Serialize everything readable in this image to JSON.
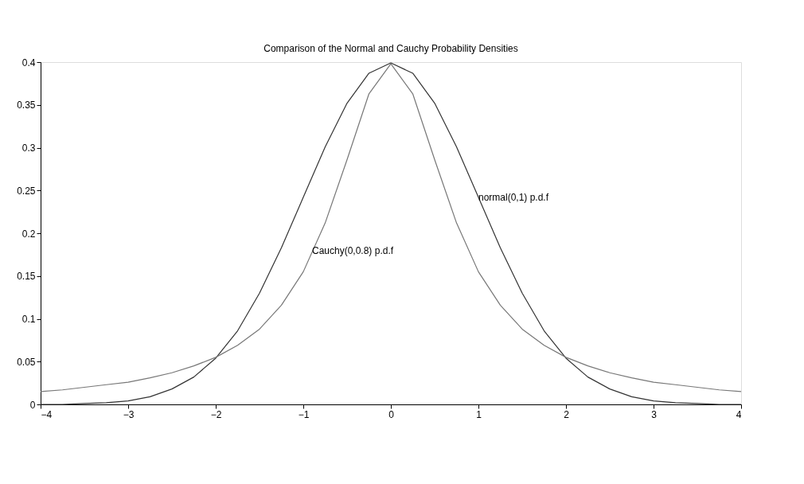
{
  "chart_data": {
    "type": "line",
    "title": "Comparison of the Normal and Cauchy Probability Densities",
    "x": [
      -4,
      -3.75,
      -3.5,
      -3.25,
      -3,
      -2.75,
      -2.5,
      -2.25,
      -2,
      -1.75,
      -1.5,
      -1.25,
      -1,
      -0.75,
      -0.5,
      -0.25,
      0,
      0.25,
      0.5,
      0.75,
      1,
      1.25,
      1.5,
      1.75,
      2,
      2.25,
      2.5,
      2.75,
      3,
      3.25,
      3.5,
      3.75,
      4
    ],
    "series": [
      {
        "color": "#333333",
        "values": [
          0.0,
          0.0,
          0.001,
          0.002,
          0.004,
          0.009,
          0.018,
          0.032,
          0.054,
          0.086,
          0.13,
          0.183,
          0.242,
          0.301,
          0.352,
          0.387,
          0.399,
          0.387,
          0.352,
          0.301,
          0.242,
          0.183,
          0.13,
          0.086,
          0.054,
          0.032,
          0.018,
          0.009,
          0.004,
          0.002,
          0.001,
          0.0,
          0.0
        ]
      },
      {
        "color": "#777777",
        "values": [
          0.015,
          0.017,
          0.02,
          0.023,
          0.026,
          0.031,
          0.037,
          0.045,
          0.055,
          0.069,
          0.088,
          0.116,
          0.155,
          0.212,
          0.286,
          0.363,
          0.398,
          0.363,
          0.286,
          0.212,
          0.155,
          0.116,
          0.088,
          0.069,
          0.055,
          0.045,
          0.037,
          0.031,
          0.026,
          0.023,
          0.02,
          0.017,
          0.015
        ]
      }
    ],
    "annotations": [
      {
        "text": "normal(0,1) p.d.f",
        "x": 1,
        "y": 0.242
      },
      {
        "text": "Cauchy(0,0.8) p.d.f",
        "x": -0.9,
        "y": 0.18
      }
    ],
    "xlim": [
      -4,
      4
    ],
    "xticks": [
      -4,
      -3,
      -2,
      -1,
      0,
      1,
      2,
      3,
      4
    ],
    "ylim": [
      0,
      0.4
    ],
    "yticks": [
      0,
      0.05,
      0.1,
      0.15,
      0.2,
      0.25,
      0.3,
      0.35,
      0.4
    ],
    "grid": false,
    "legend": false,
    "marker": "none",
    "line_style": "solid"
  }
}
